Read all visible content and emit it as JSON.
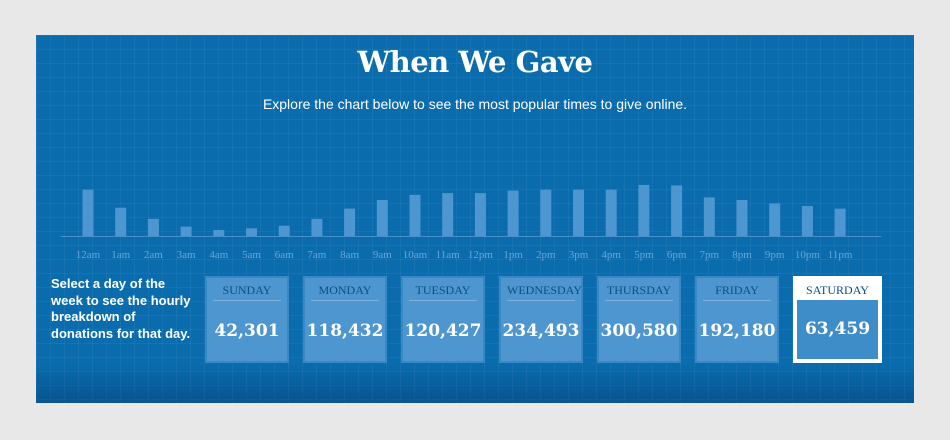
{
  "title": "When We Gave",
  "subtitle": "Explore the chart below to see the most popular times to give online.",
  "instructions": "Select a day of the week to see the hourly breakdown of donations for that day.",
  "colors": {
    "background": "#0a6cad",
    "bar": "#4d96cf",
    "tick_label": "#6aa6d6"
  },
  "chart_data": {
    "type": "bar",
    "categories": [
      "12am",
      "1am",
      "2am",
      "3am",
      "4am",
      "5am",
      "6am",
      "7am",
      "8am",
      "9am",
      "10am",
      "11am",
      "12pm",
      "1pm",
      "2pm",
      "3pm",
      "4pm",
      "5pm",
      "6pm",
      "7pm",
      "8pm",
      "9pm",
      "10pm",
      "11pm"
    ],
    "values": [
      5400,
      3300,
      2000,
      1100,
      700,
      900,
      1200,
      2000,
      3200,
      4200,
      4800,
      5000,
      5000,
      5300,
      5400,
      5400,
      5400,
      6600,
      5900,
      4500,
      4200,
      3800,
      3500,
      3200
    ],
    "title": "",
    "xlabel": "",
    "ylabel": "",
    "ylim": [
      0,
      7000
    ],
    "grid": false
  },
  "days": [
    {
      "name": "Sunday",
      "value": "42,301"
    },
    {
      "name": "Monday",
      "value": "118,432"
    },
    {
      "name": "Tuesday",
      "value": "120,427"
    },
    {
      "name": "Wednesday",
      "value": "234,493"
    },
    {
      "name": "Thursday",
      "value": "300,580"
    },
    {
      "name": "Friday",
      "value": "192,180"
    },
    {
      "name": "Saturday",
      "value": "63,459"
    }
  ],
  "selected_day": "Saturday"
}
